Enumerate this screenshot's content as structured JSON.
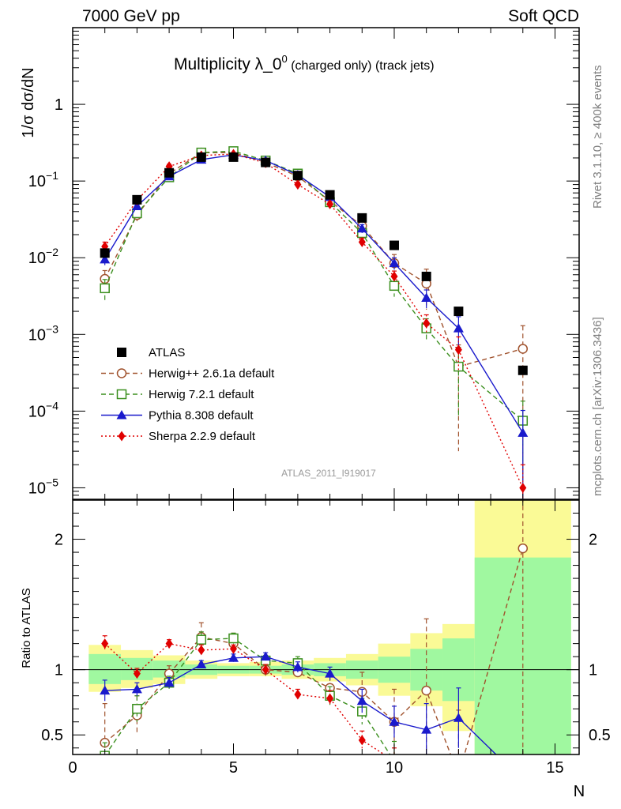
{
  "header": {
    "left": "7000 GeV pp",
    "right": "Soft QCD"
  },
  "side_labels": {
    "rivet": "Rivet 3.1.10, ≥ 400k events",
    "mcplots": "mcplots.cern.ch [arXiv:1306.3436]"
  },
  "analysis_id": "ATLAS_2011_I919017",
  "chart_data": {
    "type": "scatter",
    "title": "Multiplicity λ_0",
    "title_sup": "0",
    "title_suffix": " (charged only) (track jets)",
    "xlabel": "N",
    "ylabel_main": "1/σ dσ/dN",
    "ylabel_ratio": "Ratio to ATLAS",
    "xlim": [
      0,
      15.75
    ],
    "ylim_main_log10": [
      -5.15,
      1.0
    ],
    "ylim_ratio": [
      0.35,
      2.3
    ],
    "x_ticks": [
      0,
      5,
      10,
      15
    ],
    "y_ticks_main": [
      {
        "base": "10",
        "exp": "−5",
        "log": -5
      },
      {
        "base": "10",
        "exp": "−4",
        "log": -4
      },
      {
        "base": "10",
        "exp": "−3",
        "log": -3
      },
      {
        "base": "10",
        "exp": "−2",
        "log": -2
      },
      {
        "base": "10",
        "exp": "−1",
        "log": -1
      },
      {
        "base": "1",
        "exp": "",
        "log": 0
      }
    ],
    "y_ticks_ratio": [
      {
        "label": "0.5",
        "value": 0.5
      },
      {
        "label": "1",
        "value": 1
      },
      {
        "label": "2",
        "value": 2
      }
    ],
    "x": [
      1,
      2,
      3,
      4,
      5,
      6,
      7,
      8,
      9,
      10,
      11,
      12,
      14
    ],
    "data": {
      "name": "ATLAS",
      "values": [
        0.0115,
        0.057,
        0.128,
        0.205,
        0.205,
        0.175,
        0.118,
        0.066,
        0.033,
        0.0145,
        0.0057,
        0.002,
        0.00034
      ]
    },
    "ratio_bands": [
      {
        "x0": 0.5,
        "x1": 1.5,
        "stat": [
          0.89,
          1.12
        ],
        "total": [
          0.83,
          1.19
        ]
      },
      {
        "x0": 1.5,
        "x1": 2.5,
        "stat": [
          0.92,
          1.09
        ],
        "total": [
          0.86,
          1.15
        ]
      },
      {
        "x0": 2.5,
        "x1": 3.5,
        "stat": [
          0.94,
          1.07
        ],
        "total": [
          0.89,
          1.11
        ]
      },
      {
        "x0": 3.5,
        "x1": 4.5,
        "stat": [
          0.96,
          1.04
        ],
        "total": [
          0.93,
          1.07
        ]
      },
      {
        "x0": 4.5,
        "x1": 5.5,
        "stat": [
          0.97,
          1.03
        ],
        "total": [
          0.95,
          1.05
        ]
      },
      {
        "x0": 5.5,
        "x1": 6.5,
        "stat": [
          0.97,
          1.03
        ],
        "total": [
          0.95,
          1.06
        ]
      },
      {
        "x0": 6.5,
        "x1": 7.5,
        "stat": [
          0.96,
          1.04
        ],
        "total": [
          0.93,
          1.07
        ]
      },
      {
        "x0": 7.5,
        "x1": 8.5,
        "stat": [
          0.95,
          1.05
        ],
        "total": [
          0.91,
          1.09
        ]
      },
      {
        "x0": 8.5,
        "x1": 9.5,
        "stat": [
          0.93,
          1.07
        ],
        "total": [
          0.88,
          1.12
        ]
      },
      {
        "x0": 9.5,
        "x1": 10.5,
        "stat": [
          0.9,
          1.1
        ],
        "total": [
          0.8,
          1.2
        ]
      },
      {
        "x0": 10.5,
        "x1": 11.5,
        "stat": [
          0.84,
          1.16
        ],
        "total": [
          0.72,
          1.28
        ]
      },
      {
        "x0": 11.5,
        "x1": 12.5,
        "stat": [
          0.76,
          1.24
        ],
        "total": [
          0.53,
          1.35
        ]
      },
      {
        "x0": 12.5,
        "x1": 15.5,
        "stat": [
          0.2,
          1.86
        ],
        "total": [
          0.2,
          2.6
        ]
      }
    ],
    "series": [
      {
        "name": "Herwig++ 2.6.1a default",
        "color": "#a0522d",
        "dash": "6,4",
        "marker": "circle-open",
        "values": [
          0.0053,
          0.036,
          0.125,
          0.235,
          0.235,
          0.175,
          0.115,
          0.055,
          0.026,
          0.0085,
          0.0046,
          0.00038,
          0.00065
        ],
        "err": [
          0.0015,
          0.006,
          0.01,
          0.012,
          0.012,
          0.01,
          0.008,
          0.005,
          0.004,
          0.0025,
          0.0025,
          0.00035,
          0.00065
        ],
        "ratio": [
          0.44,
          0.65,
          0.97,
          1.25,
          1.2,
          1.0,
          0.98,
          0.86,
          0.83,
          0.6,
          0.84,
          0.19,
          1.93
        ],
        "ratio_err": [
          0.3,
          0.15,
          0.06,
          0.11,
          0.08,
          0.05,
          0.06,
          0.09,
          0.15,
          0.25,
          0.55,
          0.5,
          1.6
        ]
      },
      {
        "name": "Herwig 7.2.1 default",
        "color": "#3b8f1e",
        "dash": "6,4",
        "marker": "square-open",
        "values": [
          0.004,
          0.038,
          0.112,
          0.235,
          0.245,
          0.185,
          0.125,
          0.053,
          0.021,
          0.0043,
          0.0012,
          0.00038,
          7.5e-05
        ],
        "err": [
          0.0012,
          0.005,
          0.01,
          0.012,
          0.012,
          0.01,
          0.008,
          0.005,
          0.003,
          0.0012,
          0.0004,
          0.0003,
          6e-05
        ],
        "ratio": [
          0.34,
          0.7,
          0.9,
          1.23,
          1.24,
          1.07,
          1.05,
          0.8,
          0.68,
          0.3,
          0.2,
          0.15,
          0.2
        ],
        "ratio_err": [
          0.1,
          0.1,
          0.05,
          0.06,
          0.04,
          0.04,
          0.05,
          0.07,
          0.1,
          0.15,
          0.1,
          0.1,
          0.1
        ]
      },
      {
        "name": "Pythia 8.308 default",
        "color": "#1a1acc",
        "dash": "",
        "marker": "triangle",
        "values": [
          0.0095,
          0.047,
          0.115,
          0.19,
          0.22,
          0.185,
          0.12,
          0.062,
          0.024,
          0.0085,
          0.003,
          0.0012,
          5.2e-05
        ],
        "err": [
          0.0015,
          0.004,
          0.008,
          0.01,
          0.01,
          0.01,
          0.007,
          0.004,
          0.003,
          0.0015,
          0.0008,
          0.0005,
          5e-05
        ],
        "ratio": [
          0.84,
          0.85,
          0.9,
          1.04,
          1.09,
          1.1,
          1.02,
          0.97,
          0.76,
          0.6,
          0.54,
          0.63,
          0.15
        ],
        "ratio_err": [
          0.08,
          0.05,
          0.04,
          0.03,
          0.03,
          0.03,
          0.04,
          0.05,
          0.09,
          0.12,
          0.2,
          0.23,
          0.1
        ]
      },
      {
        "name": "Sherpa 2.2.9 default",
        "color": "#e00000",
        "dash": "2,3",
        "marker": "diamond",
        "values": [
          0.014,
          0.056,
          0.155,
          0.215,
          0.225,
          0.172,
          0.09,
          0.05,
          0.016,
          0.0057,
          0.0014,
          0.00063,
          1e-05
        ],
        "err": [
          0.002,
          0.005,
          0.01,
          0.01,
          0.01,
          0.01,
          0.006,
          0.004,
          0.002,
          0.001,
          0.0004,
          0.0003,
          1e-05
        ],
        "ratio": [
          1.2,
          0.97,
          1.2,
          1.15,
          1.16,
          1.0,
          0.81,
          0.78,
          0.46,
          0.3,
          0.24,
          0.15,
          0.1
        ],
        "ratio_err": [
          0.06,
          0.04,
          0.03,
          0.04,
          0.03,
          0.04,
          0.04,
          0.06,
          0.07,
          0.1,
          0.1,
          0.1,
          0.1
        ]
      }
    ],
    "legend": [
      {
        "label": "ATLAS",
        "marker": "square-filled",
        "color": "#000000",
        "dash": ""
      },
      {
        "label": "Herwig++ 2.6.1a default",
        "marker": "circle-open",
        "color": "#a0522d",
        "dash": "6,4"
      },
      {
        "label": "Herwig 7.2.1 default",
        "marker": "square-open",
        "color": "#3b8f1e",
        "dash": "6,4"
      },
      {
        "label": "Pythia 8.308 default",
        "marker": "triangle",
        "color": "#1a1acc",
        "dash": ""
      },
      {
        "label": "Sherpa 2.2.9 default",
        "marker": "diamond",
        "color": "#e00000",
        "dash": "2,3"
      }
    ],
    "band_colors": {
      "stat": "#a0f8a0",
      "total": "#fafa96"
    }
  }
}
